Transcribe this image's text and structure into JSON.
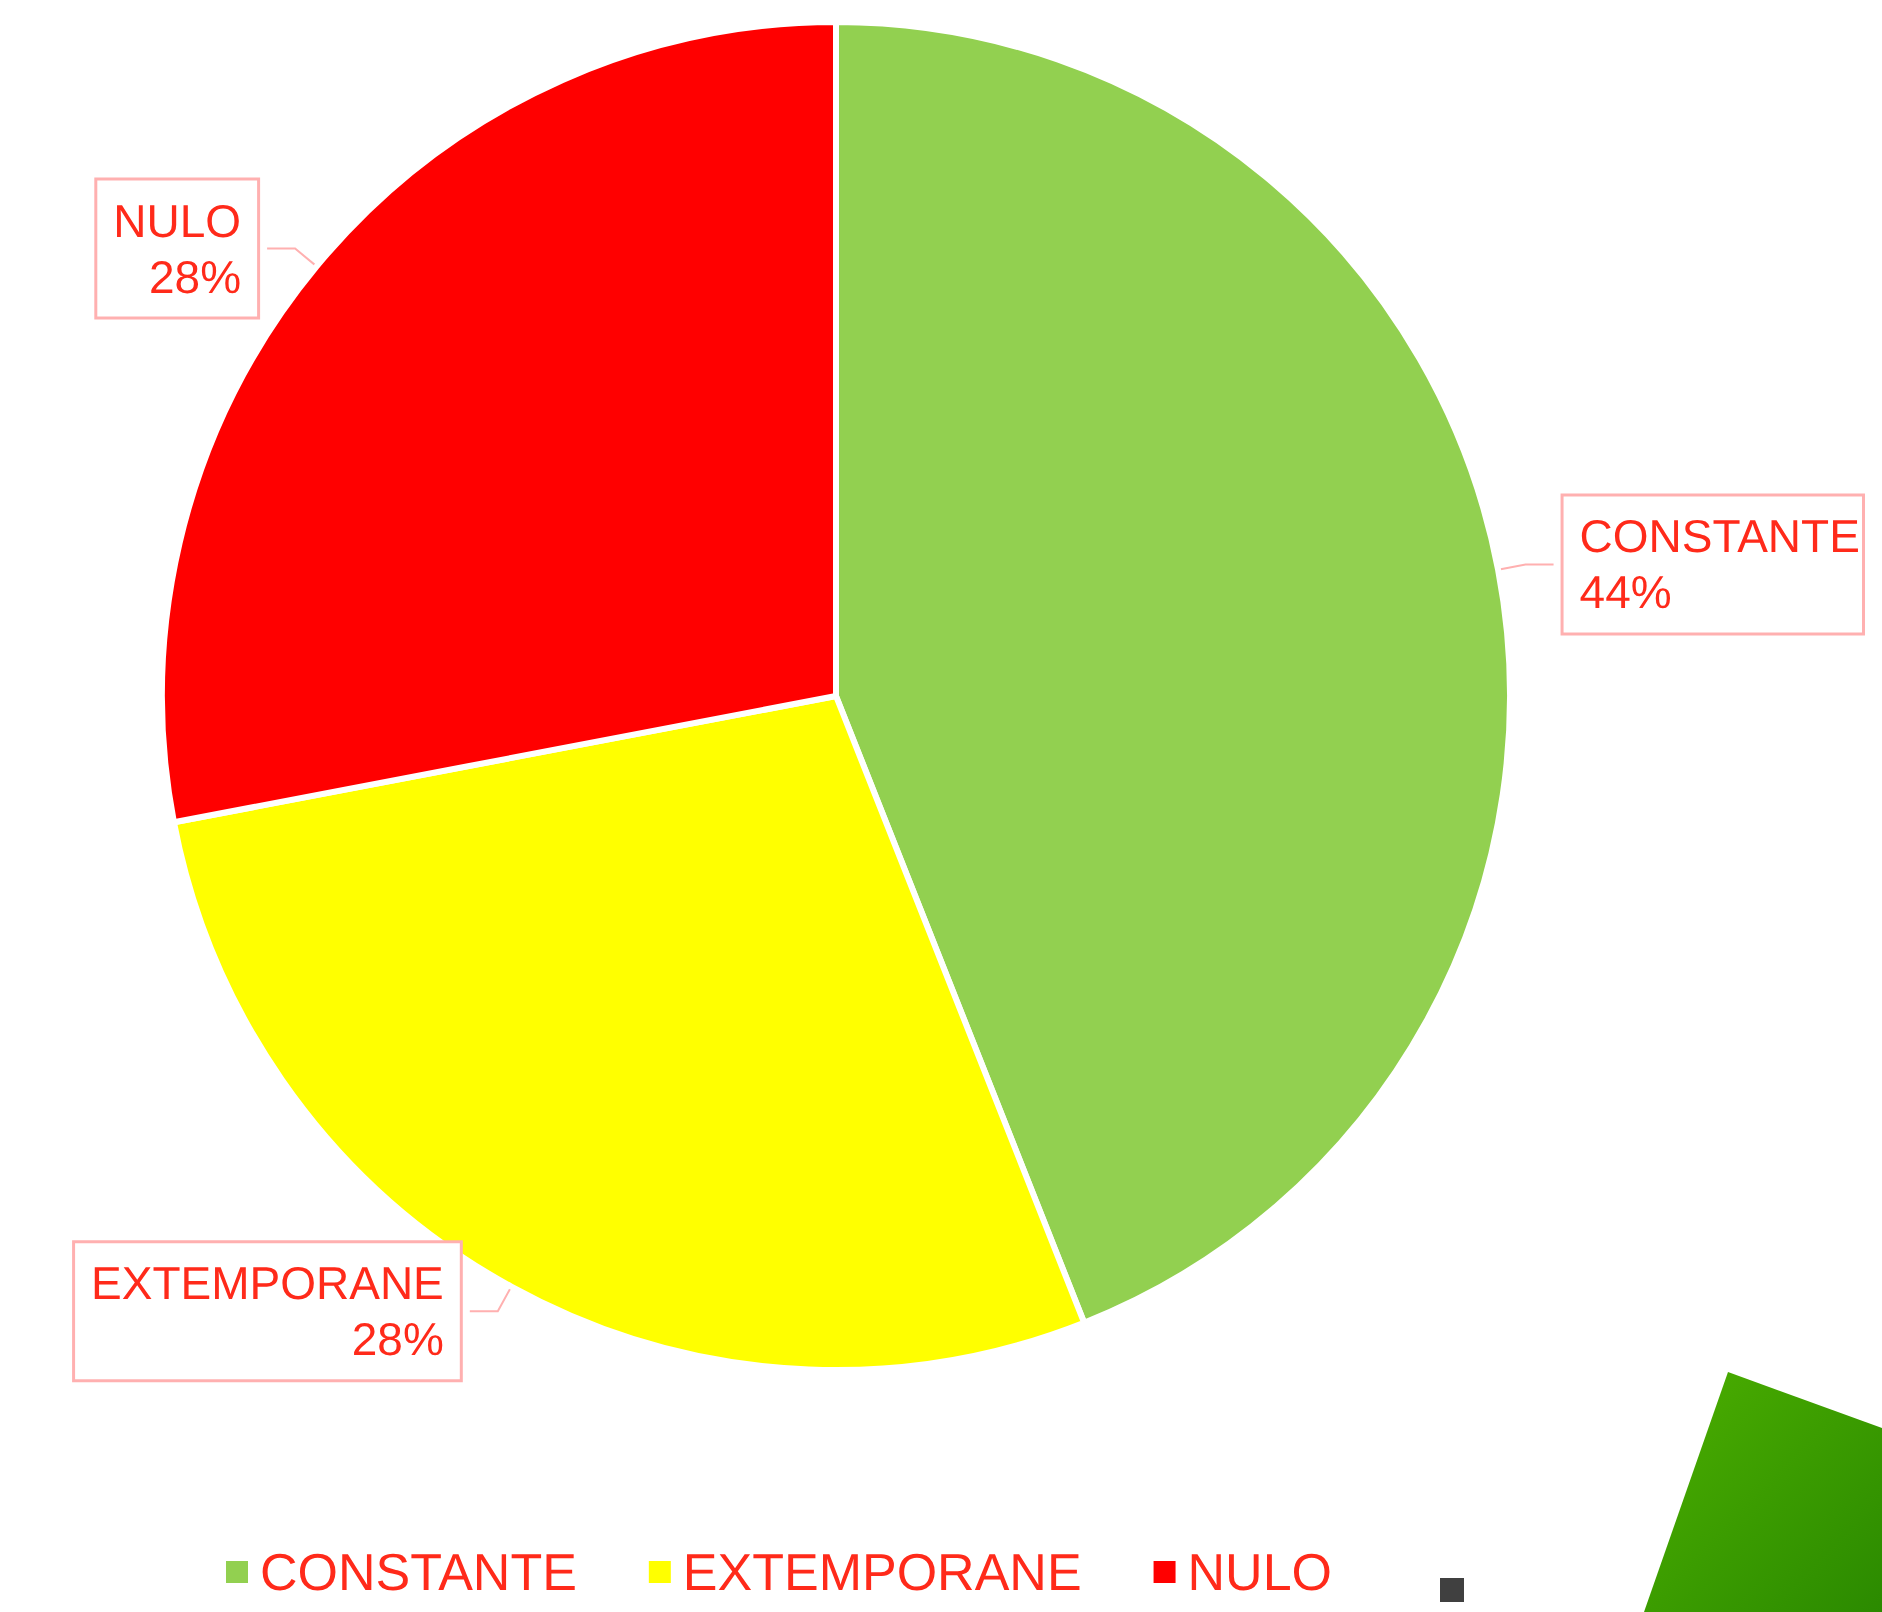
{
  "chart_data": {
    "type": "pie",
    "categories": [
      "CONSTANTE",
      "EXTEMPORANE",
      "NULO"
    ],
    "values": [
      44,
      28,
      28
    ],
    "value_labels": [
      "44%",
      "28%",
      "28%"
    ],
    "colors": [
      "#92d050",
      "#ffff00",
      "#ff0000"
    ],
    "legend": "bottom"
  }
}
